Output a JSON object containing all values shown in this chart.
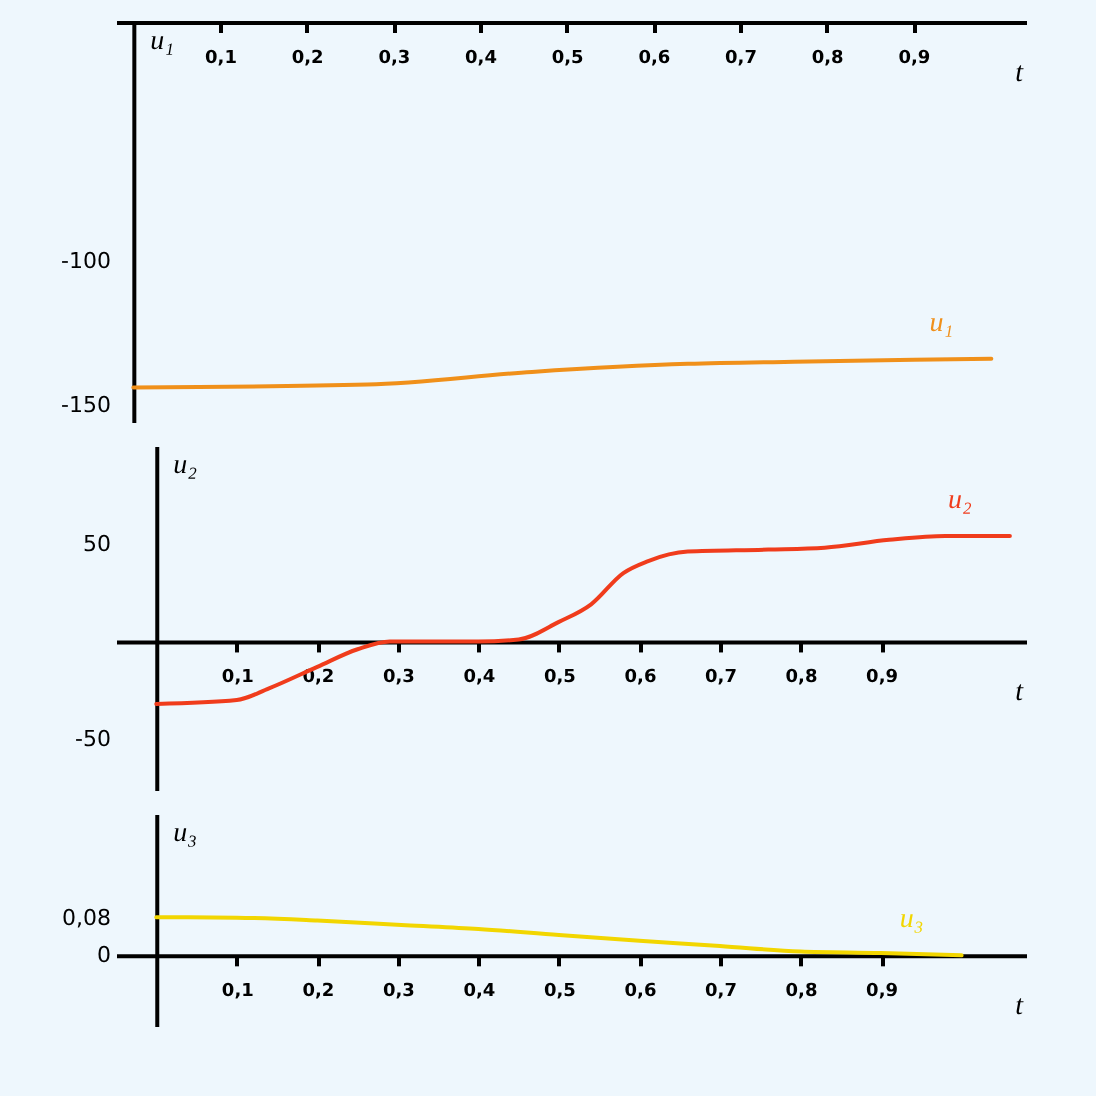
{
  "chart_data": [
    {
      "type": "line",
      "xlabel": "t",
      "ylabel": "u₁",
      "x": [
        0,
        0.27,
        0.46,
        0.64,
        0.78,
        0.99
      ],
      "series": [
        {
          "name": "u₁",
          "color": "#f0901a",
          "values": [
            -144,
            -143,
            -138.6,
            -135.8,
            -135,
            -134
          ]
        }
      ],
      "xlim": [
        -0.02,
        1.03
      ],
      "xticks": [
        {
          "value": 0.1,
          "label": "0,1"
        },
        {
          "value": 0.2,
          "label": "0,2"
        },
        {
          "value": 0.3,
          "label": "0,3"
        },
        {
          "value": 0.4,
          "label": "0,4"
        },
        {
          "value": 0.5,
          "label": "0,5"
        },
        {
          "value": 0.6,
          "label": "0,6"
        },
        {
          "value": 0.7,
          "label": "0,7"
        },
        {
          "value": 0.8,
          "label": "0,8"
        },
        {
          "value": 0.9,
          "label": "0,9"
        }
      ],
      "ylim": [
        -156,
        -17
      ],
      "yticks": [
        -150,
        -100
      ]
    },
    {
      "type": "line",
      "xlabel": "t",
      "ylabel": "u₂",
      "x": [
        0,
        0.1,
        0.14,
        0.2,
        0.25,
        0.29,
        0.35,
        0.4,
        0.45,
        0.5,
        0.54,
        0.58,
        0.61,
        0.66,
        0.76,
        0.83,
        0.91,
        0.98,
        1.06
      ],
      "series": [
        {
          "name": "u₂",
          "color": "#f03c1c",
          "values": [
            -32,
            -30,
            -24,
            -13,
            -4,
            0,
            0,
            0,
            1,
            10,
            19,
            35,
            41,
            46,
            47,
            48,
            52,
            54,
            54
          ]
        }
      ],
      "xlim": [
        -0.05,
        1.08
      ],
      "xticks": [
        {
          "value": 0.1,
          "label": "0,1"
        },
        {
          "value": 0.2,
          "label": "0,2"
        },
        {
          "value": 0.3,
          "label": "0,3"
        },
        {
          "value": 0.4,
          "label": "0,4"
        },
        {
          "value": 0.5,
          "label": "0,5"
        },
        {
          "value": 0.6,
          "label": "0,6"
        },
        {
          "value": 0.7,
          "label": "0,7"
        },
        {
          "value": 0.8,
          "label": "0,8"
        },
        {
          "value": 0.9,
          "label": "0,9"
        }
      ],
      "ylim": [
        -76,
        100
      ],
      "yticks": [
        -50,
        50
      ]
    },
    {
      "type": "line",
      "xlabel": "t",
      "ylabel": "u₃",
      "x": [
        0,
        0.1,
        0.2,
        0.31,
        0.4,
        0.5,
        0.6,
        0.7,
        0.8,
        0.9,
        1.0
      ],
      "series": [
        {
          "name": "u₃",
          "color": "#f2d600",
          "values": [
            0.081,
            0.08,
            0.074,
            0.064,
            0.056,
            0.043,
            0.031,
            0.02,
            0.008,
            0.005,
            0
          ]
        }
      ],
      "xlim": [
        -0.05,
        1.08
      ],
      "xticks": [
        {
          "value": 0.1,
          "label": "0,1"
        },
        {
          "value": 0.2,
          "label": "0,2"
        },
        {
          "value": 0.3,
          "label": "0,3"
        },
        {
          "value": 0.4,
          "label": "0,4"
        },
        {
          "value": 0.5,
          "label": "0,5"
        },
        {
          "value": 0.6,
          "label": "0,6"
        },
        {
          "value": 0.7,
          "label": "0,7"
        },
        {
          "value": 0.8,
          "label": "0,8"
        },
        {
          "value": 0.9,
          "label": "0,9"
        }
      ],
      "ylim": [
        -0.15,
        0.3
      ],
      "yticks": [
        {
          "value": 0.08,
          "label": "0,08"
        },
        0
      ]
    }
  ]
}
